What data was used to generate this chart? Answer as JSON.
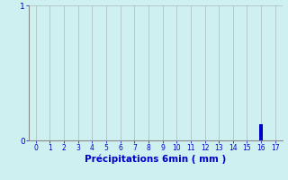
{
  "background_color": "#cff0f0",
  "bar_color": "#0000cc",
  "grid_color": "#aabbbb",
  "spine_color": "#888888",
  "tick_label_color": "#0000cc",
  "xlabel": "Précipitations 6min ( mm )",
  "xlabel_color": "#0000cc",
  "xlabel_fontsize": 7.5,
  "xlim": [
    -0.5,
    17.5
  ],
  "ylim": [
    0,
    1
  ],
  "yticks": [
    0,
    1
  ],
  "xticks": [
    0,
    1,
    2,
    3,
    4,
    5,
    6,
    7,
    8,
    9,
    10,
    11,
    12,
    13,
    14,
    15,
    16,
    17
  ],
  "xtick_fontsize": 5.5,
  "ytick_fontsize": 6.5,
  "bar_x": 16,
  "bar_height": 0.12,
  "bar_width": 0.3
}
